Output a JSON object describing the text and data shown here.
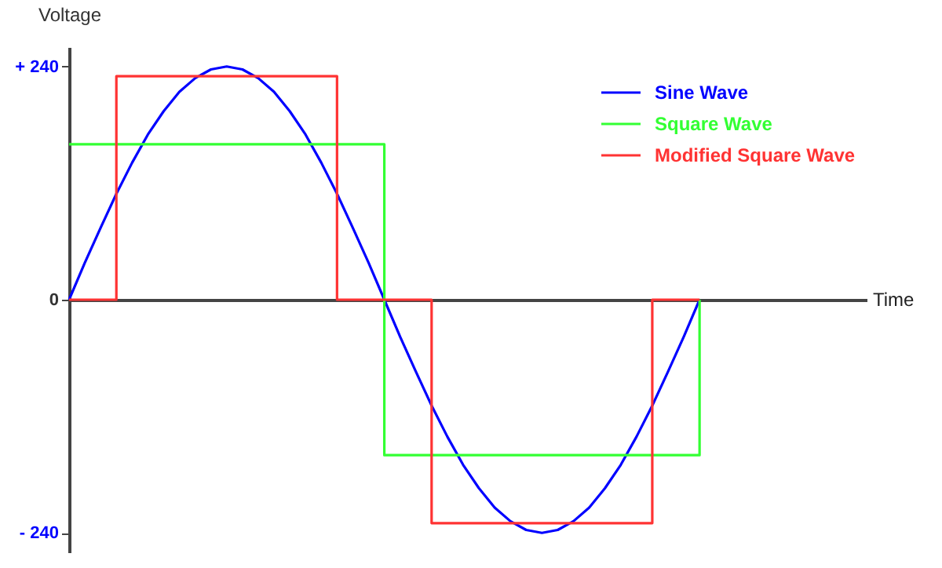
{
  "chart_data": {
    "type": "line",
    "annotations": [
      "Time"
    ],
    "ylabel": "Voltage",
    "categories": [
      null,
      null,
      null,
      null,
      null,
      null,
      null,
      null,
      null,
      null,
      null,
      null,
      null,
      null,
      null,
      null,
      null,
      null,
      null,
      null,
      null,
      null,
      null,
      null,
      null,
      null,
      null,
      null,
      null,
      null,
      null,
      null,
      null,
      null,
      null,
      null,
      null,
      null,
      null,
      null,
      null
    ],
    "series": [
      {
        "name": "Sine Wave",
        "type": "line",
        "color": "#0000ff",
        "values": [
          0,
          38,
          74,
          109,
          141,
          170,
          194,
          214,
          228,
          237,
          240,
          237,
          228,
          214,
          194,
          170,
          141,
          109,
          74,
          38,
          0,
          -38,
          -74,
          -109,
          -141,
          -170,
          -194,
          -214,
          -228,
          -237,
          -240,
          -237,
          -228,
          -214,
          -194,
          -170,
          -141,
          -109,
          -74,
          -38,
          0
        ]
      },
      {
        "name": "Square Wave",
        "type": "step",
        "color": "#33ff33",
        "values": [
          160,
          160,
          160,
          160,
          160,
          160,
          160,
          160,
          160,
          160,
          160,
          160,
          160,
          160,
          160,
          160,
          160,
          160,
          160,
          160,
          -160,
          -160,
          -160,
          -160,
          -160,
          -160,
          -160,
          -160,
          -160,
          -160,
          -160,
          -160,
          -160,
          -160,
          -160,
          -160,
          -160,
          -160,
          -160,
          -160,
          0
        ]
      },
      {
        "name": "Modified Square Wave",
        "type": "step",
        "color": "#ff3333",
        "values": [
          0,
          0,
          0,
          230,
          230,
          230,
          230,
          230,
          230,
          230,
          230,
          230,
          230,
          230,
          230,
          230,
          230,
          0,
          0,
          0,
          0,
          0,
          0,
          -230,
          -230,
          -230,
          -230,
          -230,
          -230,
          -230,
          -230,
          -230,
          -230,
          -230,
          -230,
          -230,
          -230,
          0,
          0,
          0,
          0
        ]
      }
    ],
    "ylim": [
      -260,
      260
    ],
    "yticks": [
      {
        "value": 240,
        "label": "+ 240"
      },
      0,
      {
        "value": -240,
        "label": "- 240"
      }
    ],
    "tick_labels": "y",
    "legend": "top right",
    "marker": "none",
    "line_style": "solid"
  }
}
